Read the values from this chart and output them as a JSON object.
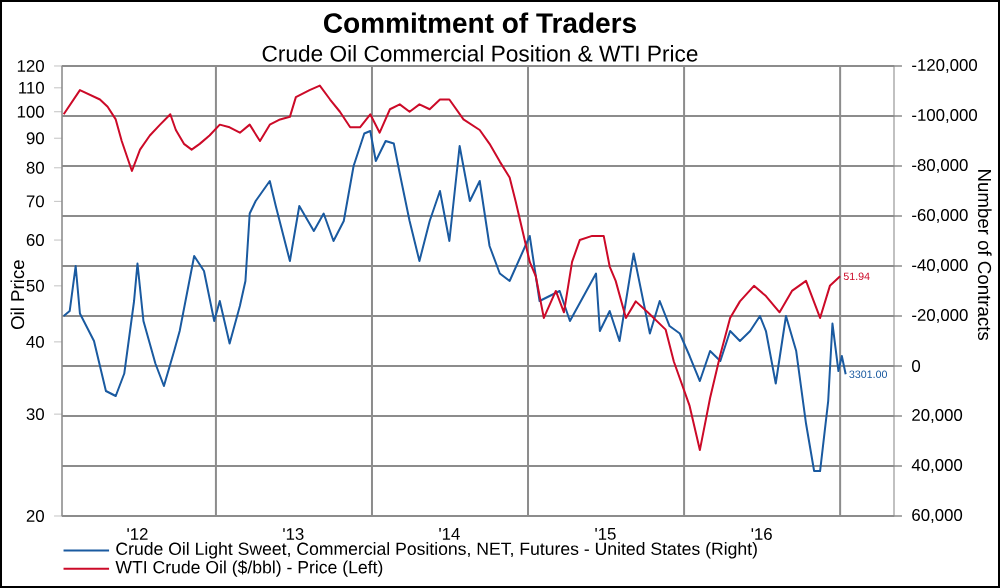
{
  "chart_data": {
    "type": "line",
    "title": "Commitment of Traders",
    "subtitle": "Crude Oil Commercial Position & WTI Price",
    "ylabel": "Oil Price",
    "y2label": "Number of Contracts",
    "xlim": [
      "2012-01-06",
      "2017-05-07"
    ],
    "xticks": [
      {
        "value": "2012-07-01",
        "label": "'12"
      },
      {
        "value": "2013-01-01",
        "label": null
      },
      {
        "value": "2013-07-01",
        "label": "'13"
      },
      {
        "value": "2014-01-01",
        "label": null
      },
      {
        "value": "2014-07-01",
        "label": "'14"
      },
      {
        "value": "2015-01-01",
        "label": null
      },
      {
        "value": "2015-07-01",
        "label": "'15"
      },
      {
        "value": "2016-01-01",
        "label": null
      },
      {
        "value": "2016-07-01",
        "label": "'16"
      },
      {
        "value": "2017-01-01",
        "label": null
      }
    ],
    "ylim": [
      20,
      120
    ],
    "yticks": [
      20,
      30,
      40,
      50,
      60,
      70,
      80,
      90,
      100,
      110,
      120
    ],
    "log": "y",
    "y2lim": [
      60000,
      -120000
    ],
    "y2ticks": [
      {
        "value": -120000,
        "label": "-120,000"
      },
      {
        "value": -100000,
        "label": "-100,000"
      },
      {
        "value": -80000,
        "label": "-80,000"
      },
      {
        "value": -60000,
        "label": "-60,000"
      },
      {
        "value": -40000,
        "label": "-40,000"
      },
      {
        "value": -20000,
        "label": "-20,000"
      },
      0,
      {
        "value": 20000,
        "label": "20,000"
      },
      {
        "value": 40000,
        "label": "40,000"
      },
      {
        "value": 60000,
        "label": "60,000"
      }
    ],
    "grid": true,
    "legend": "bottom",
    "series": [
      {
        "name": "Crude Oil Light Sweet, Commercial Positions, NET, Futures - United States  (Right)",
        "color": "#1a5aa0",
        "axis": "y2",
        "x": [
          "2012-01-10",
          "2012-01-24",
          "2012-02-07",
          "2012-02-17",
          "2012-03-21",
          "2012-04-18",
          "2012-05-11",
          "2012-05-31",
          "2012-06-23",
          "2012-07-01",
          "2012-07-15",
          "2012-08-12",
          "2012-09-01",
          "2012-09-25",
          "2012-10-08",
          "2012-11-11",
          "2012-12-04",
          "2012-12-28",
          "2013-01-10",
          "2013-02-02",
          "2013-02-26",
          "2013-03-11",
          "2013-03-21",
          "2013-04-04",
          "2013-05-07",
          "2013-05-21",
          "2013-06-23",
          "2013-07-15",
          "2013-08-18",
          "2013-09-10",
          "2013-10-03",
          "2013-10-27",
          "2013-11-19",
          "2013-12-14",
          "2013-12-28",
          "2014-01-10",
          "2014-02-02",
          "2014-02-21",
          "2014-03-07",
          "2014-03-30",
          "2014-04-22",
          "2014-05-16",
          "2014-06-09",
          "2014-07-01",
          "2014-07-25",
          "2014-08-18",
          "2014-09-10",
          "2014-10-03",
          "2014-10-27",
          "2014-11-19",
          "2015-01-05",
          "2015-01-28",
          "2015-03-16",
          "2015-04-09",
          "2015-06-09",
          "2015-06-18",
          "2015-07-11",
          "2015-08-03",
          "2015-09-05",
          "2015-10-13",
          "2015-11-05",
          "2015-11-28",
          "2015-12-22",
          "2016-01-14",
          "2016-02-07",
          "2016-03-02",
          "2016-03-26",
          "2016-04-18",
          "2016-05-11",
          "2016-06-04",
          "2016-06-27",
          "2016-07-11",
          "2016-08-03",
          "2016-08-27",
          "2016-09-20",
          "2016-10-13",
          "2016-11-01",
          "2016-11-15",
          "2016-12-04",
          "2016-12-14",
          "2016-12-28",
          "2017-01-05",
          "2017-01-14"
        ],
        "values": [
          -20000,
          -22000,
          -40000,
          -21000,
          -10000,
          10000,
          12000,
          3000,
          -26000,
          -41000,
          -18000,
          -1000,
          8000,
          -6000,
          -14000,
          -44000,
          -38000,
          -18000,
          -26000,
          -9000,
          -24000,
          -34000,
          -61000,
          -66000,
          -74000,
          -64000,
          -42000,
          -64000,
          -54000,
          -61000,
          -50000,
          -58000,
          -80000,
          -93000,
          -94000,
          -82000,
          -90000,
          -89000,
          -77000,
          -58000,
          -42000,
          -58000,
          -70000,
          -50000,
          -88000,
          -66000,
          -74000,
          -48000,
          -37000,
          -34000,
          -52000,
          -26000,
          -30000,
          -18000,
          -37000,
          -14000,
          -22000,
          -10000,
          -45000,
          -13000,
          -26000,
          -16000,
          -13000,
          -4000,
          6000,
          -6000,
          -2000,
          -14000,
          -10000,
          -14000,
          -20000,
          -14000,
          7000,
          -20000,
          -6000,
          23000,
          42000,
          42000,
          14000,
          -17000,
          2000,
          -4000,
          3301
        ],
        "value_labels": [
          null,
          null,
          null,
          null,
          null,
          null,
          null,
          null,
          null,
          null,
          null,
          null,
          null,
          null,
          null,
          null,
          null,
          null,
          null,
          null,
          null,
          null,
          null,
          null,
          null,
          null,
          null,
          null,
          null,
          null,
          null,
          null,
          null,
          null,
          null,
          null,
          null,
          null,
          null,
          null,
          null,
          null,
          null,
          null,
          null,
          null,
          null,
          null,
          null,
          null,
          null,
          null,
          null,
          null,
          null,
          null,
          null,
          null,
          null,
          null,
          null,
          null,
          null,
          null,
          null,
          null,
          null,
          null,
          null,
          null,
          null,
          null,
          null,
          null,
          null,
          null,
          null,
          null,
          null,
          null,
          null,
          null,
          "3301.00"
        ]
      },
      {
        "name": "WTI Crude Oil ($/bbl) - Price  (Left)",
        "color": "#cc0a28",
        "axis": "y",
        "x": [
          "2012-01-10",
          "2012-02-17",
          "2012-04-04",
          "2012-04-22",
          "2012-05-11",
          "2012-05-25",
          "2012-06-18",
          "2012-07-07",
          "2012-07-30",
          "2012-08-23",
          "2012-09-16",
          "2012-09-29",
          "2012-10-18",
          "2012-11-05",
          "2012-11-24",
          "2012-12-17",
          "2013-01-10",
          "2013-02-02",
          "2013-02-26",
          "2013-03-21",
          "2013-04-14",
          "2013-05-07",
          "2013-05-31",
          "2013-06-23",
          "2013-07-07",
          "2013-08-08",
          "2013-09-01",
          "2013-09-25",
          "2013-10-18",
          "2013-11-11",
          "2013-12-04",
          "2013-12-28",
          "2014-01-19",
          "2014-02-12",
          "2014-03-07",
          "2014-03-30",
          "2014-04-22",
          "2014-05-16",
          "2014-06-09",
          "2014-07-01",
          "2014-08-03",
          "2014-09-10",
          "2014-10-03",
          "2014-10-27",
          "2014-11-19",
          "2014-12-03",
          "2014-12-22",
          "2015-01-05",
          "2015-01-19",
          "2015-02-07",
          "2015-03-07",
          "2015-03-26",
          "2015-04-14",
          "2015-05-02",
          "2015-05-31",
          "2015-06-27",
          "2015-07-11",
          "2015-07-25",
          "2015-08-18",
          "2015-09-10",
          "2015-10-08",
          "2015-11-19",
          "2015-12-08",
          "2016-01-14",
          "2016-02-07",
          "2016-03-02",
          "2016-03-26",
          "2016-04-18",
          "2016-05-11",
          "2016-06-13",
          "2016-07-11",
          "2016-08-12",
          "2016-09-10",
          "2016-10-13",
          "2016-11-15",
          "2016-12-08",
          "2017-01-01"
        ],
        "values": [
          99,
          109,
          105,
          102,
          97,
          89,
          79,
          86,
          91,
          95,
          99,
          93,
          88,
          86,
          88,
          91,
          95,
          94,
          92,
          95,
          89,
          95,
          97,
          98,
          106,
          109,
          111,
          105,
          100,
          94,
          94,
          99,
          92,
          101,
          103,
          100,
          103,
          101,
          105,
          105,
          97,
          93,
          88,
          82,
          77,
          70,
          61,
          55,
          52,
          44,
          49,
          45,
          55,
          60,
          61,
          61,
          54,
          51,
          44,
          47,
          45,
          42,
          37,
          31,
          26,
          32,
          38,
          44,
          47,
          50,
          48,
          45,
          49,
          51,
          44,
          50,
          51.94
        ],
        "value_labels": [
          null,
          null,
          null,
          null,
          null,
          null,
          null,
          null,
          null,
          null,
          null,
          null,
          null,
          null,
          null,
          null,
          null,
          null,
          null,
          null,
          null,
          null,
          null,
          null,
          null,
          null,
          null,
          null,
          null,
          null,
          null,
          null,
          null,
          null,
          null,
          null,
          null,
          null,
          null,
          null,
          null,
          null,
          null,
          null,
          null,
          null,
          null,
          null,
          null,
          null,
          null,
          null,
          null,
          null,
          null,
          null,
          null,
          null,
          null,
          null,
          null,
          null,
          null,
          null,
          null,
          null,
          null,
          null,
          null,
          null,
          null,
          null,
          null,
          null,
          null,
          null,
          "51.94"
        ]
      }
    ]
  }
}
